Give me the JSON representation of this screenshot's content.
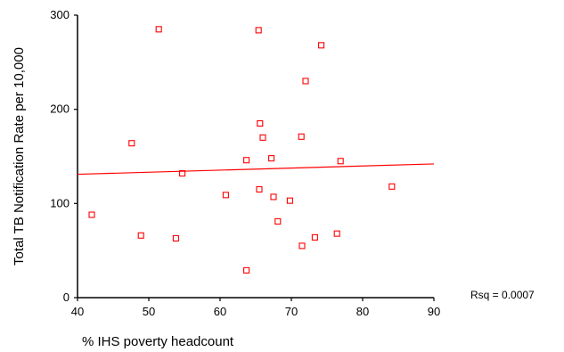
{
  "chart_data": {
    "type": "scatter",
    "xlabel": "% IHS poverty headcount",
    "ylabel": "Total TB Notification Rate per 10,000",
    "xlim": [
      40,
      90
    ],
    "ylim": [
      0,
      300
    ],
    "x_ticks": [
      "40",
      "50",
      "60",
      "70",
      "80",
      "90"
    ],
    "y_ticks": [
      "0",
      "100",
      "200",
      "300"
    ],
    "grid": false,
    "points": [
      {
        "x": 42.0,
        "y": 88
      },
      {
        "x": 47.6,
        "y": 164
      },
      {
        "x": 48.9,
        "y": 66
      },
      {
        "x": 51.4,
        "y": 285
      },
      {
        "x": 53.8,
        "y": 63
      },
      {
        "x": 54.7,
        "y": 132
      },
      {
        "x": 60.8,
        "y": 109
      },
      {
        "x": 63.7,
        "y": 146
      },
      {
        "x": 63.7,
        "y": 29
      },
      {
        "x": 65.4,
        "y": 284
      },
      {
        "x": 65.5,
        "y": 115
      },
      {
        "x": 65.6,
        "y": 185
      },
      {
        "x": 66.0,
        "y": 170
      },
      {
        "x": 67.2,
        "y": 148
      },
      {
        "x": 67.5,
        "y": 107
      },
      {
        "x": 68.1,
        "y": 81
      },
      {
        "x": 69.8,
        "y": 103
      },
      {
        "x": 71.4,
        "y": 171
      },
      {
        "x": 71.5,
        "y": 55
      },
      {
        "x": 72.0,
        "y": 230
      },
      {
        "x": 73.3,
        "y": 64
      },
      {
        "x": 74.2,
        "y": 268
      },
      {
        "x": 76.4,
        "y": 68
      },
      {
        "x": 76.9,
        "y": 145
      },
      {
        "x": 84.1,
        "y": 118
      }
    ],
    "fit_line": {
      "x": [
        40,
        90
      ],
      "y": [
        131,
        142
      ]
    },
    "annotation": "Rsq = 0.0007",
    "colors": {
      "points": "#ff0000",
      "fit_line": "#ff0000",
      "axes": "#000000"
    }
  }
}
